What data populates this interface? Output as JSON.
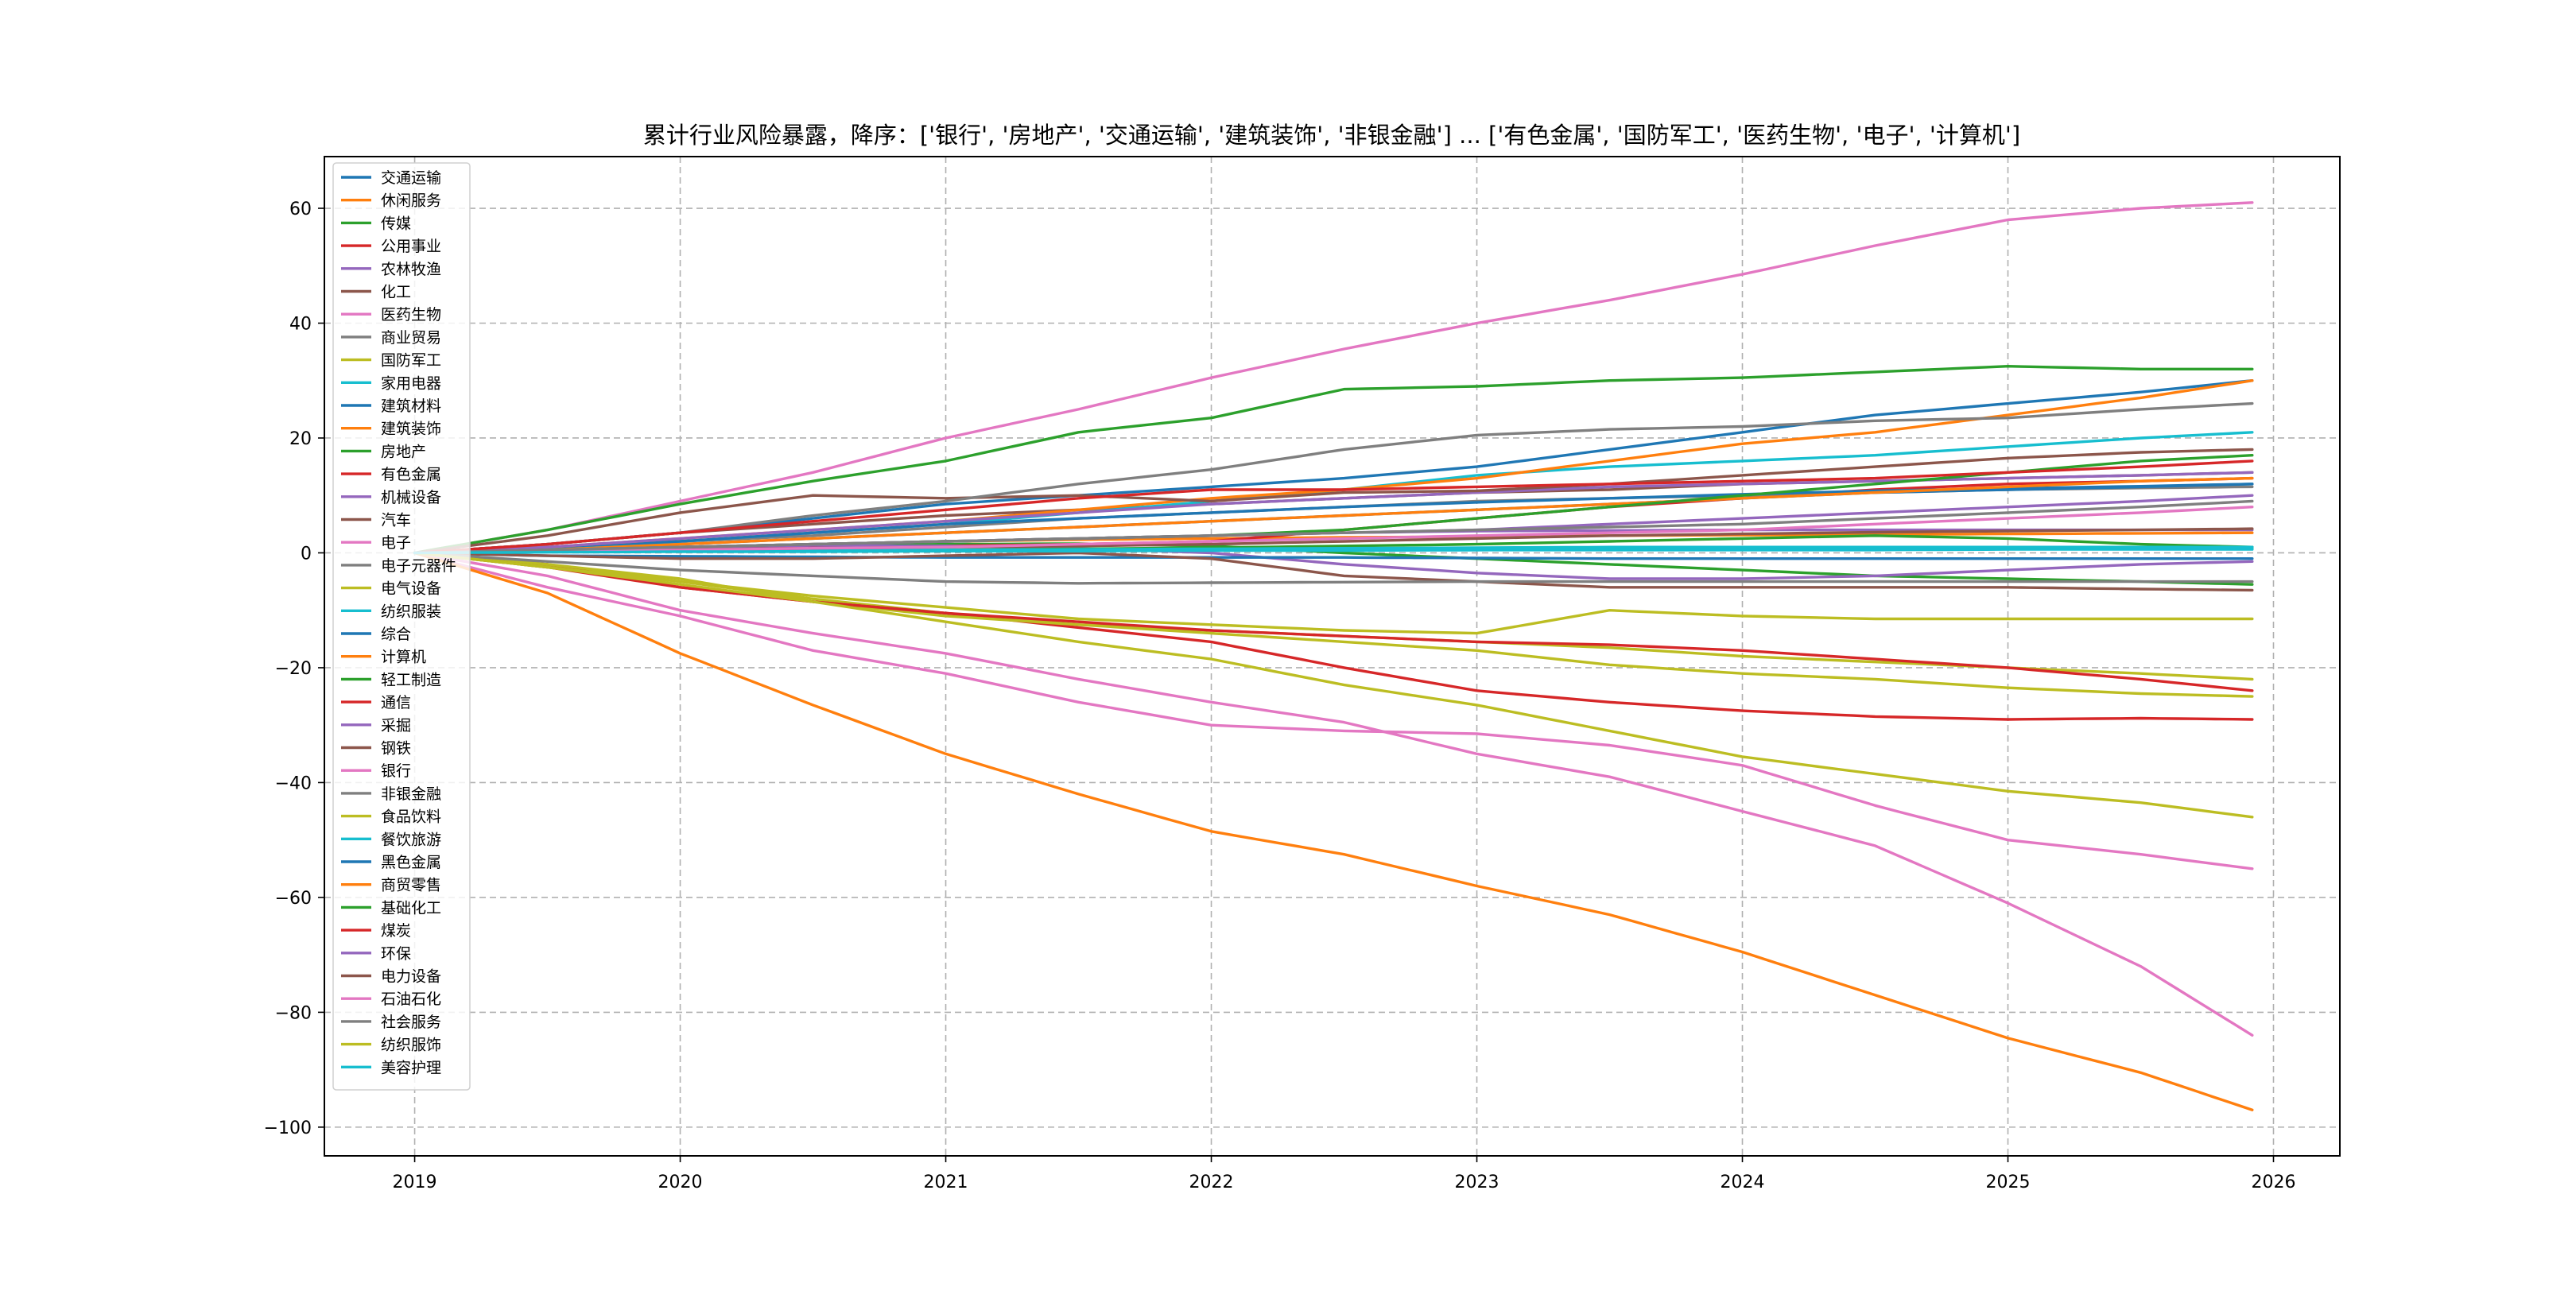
{
  "chart_data": {
    "type": "line",
    "title": "累计行业风险暴露，降序：['银行', '房地产', '交通运输', '建筑装饰', '非银金融'] ... ['有色金属', '国防军工', '医药生物', '电子', '计算机']",
    "xlabel": "",
    "ylabel": "",
    "xlim": [
      2018.66,
      2026.25
    ],
    "ylim": [
      -105,
      69
    ],
    "xticks": [
      2019,
      2020,
      2021,
      2022,
      2023,
      2024,
      2025,
      2026
    ],
    "xtick_labels": [
      "2019",
      "2020",
      "2021",
      "2022",
      "2023",
      "2024",
      "2025",
      "2026"
    ],
    "yticks": [
      -100,
      -80,
      -60,
      -40,
      -20,
      0,
      20,
      40,
      60
    ],
    "ytick_labels": [
      "−100",
      "−80",
      "−60",
      "−40",
      "−20",
      "0",
      "20",
      "40",
      "60"
    ],
    "grid": true,
    "legend_position": "upper-left",
    "x": [
      2019.0,
      2019.5,
      2020.0,
      2020.5,
      2021.0,
      2021.5,
      2022.0,
      2022.5,
      2023.0,
      2023.5,
      2024.0,
      2024.5,
      2025.0,
      2025.5,
      2025.92
    ],
    "series": [
      {
        "name": "交通运输",
        "color": "#1f77b4",
        "values": [
          0,
          1.5,
          3.5,
          6,
          8.5,
          10,
          11.5,
          13,
          15,
          18,
          21,
          24,
          26,
          28,
          30
        ]
      },
      {
        "name": "休闲服务",
        "color": "#ff7f0e",
        "values": [
          0,
          0.5,
          1,
          1.5,
          2,
          2.3,
          2.5,
          2.7,
          2.8,
          3,
          3.1,
          3.2,
          3.3,
          3.4,
          3.5
        ]
      },
      {
        "name": "传媒",
        "color": "#2ca02c",
        "values": [
          0,
          0.5,
          1,
          1.3,
          1.5,
          1.6,
          1.2,
          0,
          -1,
          -2,
          -3,
          -4,
          -4.5,
          -5,
          -5.5
        ]
      },
      {
        "name": "公用事业",
        "color": "#d62728",
        "values": [
          0,
          0.3,
          0.6,
          0.9,
          1.2,
          1.5,
          2,
          4,
          6,
          8,
          9.5,
          11,
          12,
          12.5,
          13
        ]
      },
      {
        "name": "农林牧渔",
        "color": "#9467bd",
        "values": [
          0,
          0.5,
          1,
          1.3,
          1.2,
          0.8,
          0,
          -2,
          -3.5,
          -4.5,
          -4.5,
          -4,
          -3,
          -2,
          -1.5
        ]
      },
      {
        "name": "化工",
        "color": "#8c564b",
        "values": [
          0,
          1.5,
          3.5,
          5,
          6.5,
          7.5,
          8.5,
          9.5,
          10.5,
          11,
          12,
          12.5,
          13,
          13.5,
          14
        ]
      },
      {
        "name": "医药生物",
        "color": "#e377c2",
        "values": [
          0,
          4,
          9,
          14,
          20,
          25,
          30.5,
          35.5,
          40,
          44,
          48.5,
          53.5,
          58,
          60,
          61
        ]
      },
      {
        "name": "商业贸易",
        "color": "#7f7f7f",
        "values": [
          0,
          1,
          2,
          3,
          4.5,
          6,
          7,
          8,
          9,
          9.5,
          10,
          10.5,
          11,
          11.3,
          11.5
        ]
      },
      {
        "name": "国防军工",
        "color": "#bcbd22",
        "values": [
          0,
          -2,
          -5,
          -8,
          -10.5,
          -12.5,
          -14,
          -15.5,
          -17,
          -19.5,
          -21,
          -22,
          -23.5,
          -24.5,
          -25
        ]
      },
      {
        "name": "家用电器",
        "color": "#17becf",
        "values": [
          0,
          0.8,
          2,
          3.5,
          5,
          7,
          9,
          11,
          13.5,
          15,
          16,
          17,
          18.5,
          20,
          21
        ]
      },
      {
        "name": "建筑材料",
        "color": "#1f77b4",
        "values": [
          0,
          1,
          2,
          3.5,
          5,
          6,
          7,
          8,
          8.8,
          9.5,
          10.2,
          10.8,
          11.2,
          11.6,
          12
        ]
      },
      {
        "name": "建筑装饰",
        "color": "#ff7f0e",
        "values": [
          0,
          1,
          2.5,
          4,
          5.5,
          7.5,
          9.5,
          11,
          13,
          16,
          19,
          21,
          24,
          27,
          30
        ]
      },
      {
        "name": "房地产",
        "color": "#2ca02c",
        "values": [
          0,
          4,
          8.5,
          12.5,
          16,
          21,
          23.5,
          28.5,
          29,
          30,
          30.5,
          31.5,
          32.5,
          32,
          32
        ]
      },
      {
        "name": "有色金属",
        "color": "#d62728",
        "values": [
          0,
          -2,
          -6,
          -8.5,
          -10.5,
          -13,
          -15.5,
          -20,
          -24,
          -26,
          -27.5,
          -28.5,
          -29,
          -28.8,
          -29
        ]
      },
      {
        "name": "机械设备",
        "color": "#9467bd",
        "values": [
          0,
          1,
          2.5,
          4,
          5.5,
          7,
          8.5,
          9.5,
          10.5,
          11.5,
          12,
          12.5,
          13,
          13.5,
          14
        ]
      },
      {
        "name": "汽车",
        "color": "#8c564b",
        "values": [
          0,
          3,
          7,
          10,
          9.5,
          10,
          9,
          10.5,
          10.8,
          12,
          13.5,
          15,
          16.5,
          17.5,
          18
        ]
      },
      {
        "name": "电子",
        "color": "#e377c2",
        "values": [
          0,
          -6,
          -11,
          -17,
          -21,
          -26,
          -30,
          -31,
          -31.5,
          -33.5,
          -37,
          -44,
          -50,
          -52.5,
          -55
        ]
      },
      {
        "name": "电子元器件",
        "color": "#7f7f7f",
        "values": [
          0,
          1.5,
          3.5,
          6.5,
          9,
          12,
          14.5,
          18,
          20.5,
          21.5,
          22,
          23,
          23.5,
          25,
          26
        ]
      },
      {
        "name": "电气设备",
        "color": "#bcbd22",
        "values": [
          0,
          -2,
          -4.5,
          -8.5,
          -11,
          -12.5,
          -13.5,
          -14.5,
          -15.5,
          -16.5,
          -18,
          -19,
          -20,
          -21,
          -22
        ]
      },
      {
        "name": "纺织服装",
        "color": "#17becf",
        "values": [
          0,
          0.2,
          0.3,
          0.4,
          0.5,
          0.5,
          0.5,
          0.5,
          0.5,
          0.6,
          0.6,
          0.6,
          0.7,
          0.7,
          0.8
        ]
      },
      {
        "name": "综合",
        "color": "#1f77b4",
        "values": [
          0,
          -0.5,
          -0.6,
          -0.7,
          -0.8,
          -0.8,
          -0.8,
          -0.8,
          -0.9,
          -1,
          -1,
          -1,
          -1,
          -1,
          -1
        ]
      },
      {
        "name": "计算机",
        "color": "#ff7f0e",
        "values": [
          0,
          -7,
          -17.5,
          -26.5,
          -35,
          -42,
          -48.5,
          -52.5,
          -58,
          -63,
          -69.5,
          -77,
          -84.5,
          -90.5,
          -97
        ]
      },
      {
        "name": "轻工制造",
        "color": "#2ca02c",
        "values": [
          0,
          0.2,
          0.3,
          0.4,
          0.5,
          0.7,
          0.9,
          1.2,
          1.5,
          2,
          2.5,
          3,
          2.5,
          1.5,
          1
        ]
      },
      {
        "name": "通信",
        "color": "#d62728",
        "values": [
          0,
          -2.5,
          -6,
          -8.5,
          -10.5,
          -12,
          -13.5,
          -14.5,
          -15.5,
          -16,
          -17,
          -18.5,
          -20,
          -22,
          -24
        ]
      },
      {
        "name": "采掘",
        "color": "#9467bd",
        "values": [
          0,
          0.5,
          1,
          1.5,
          2,
          2.5,
          3,
          3.5,
          3.8,
          3.9,
          4,
          4,
          4,
          4,
          4
        ]
      },
      {
        "name": "钢铁",
        "color": "#8c564b",
        "values": [
          0,
          -0.5,
          -1,
          -1,
          -0.5,
          0,
          -1,
          -4,
          -5,
          -6,
          -6,
          -6,
          -6,
          -6.3,
          -6.5
        ]
      },
      {
        "name": "银行",
        "color": "#e377c2",
        "values": [
          0,
          -4,
          -10,
          -14,
          -17.5,
          -22,
          -26,
          -29.5,
          -35,
          -39,
          -45,
          -51,
          -61,
          -72,
          -84
        ]
      },
      {
        "name": "非银金融",
        "color": "#7f7f7f",
        "values": [
          0,
          -1.5,
          -3,
          -4,
          -5,
          -5.3,
          -5.2,
          -5.1,
          -5,
          -5,
          -5,
          -5,
          -5,
          -5,
          -5
        ]
      },
      {
        "name": "食品饮料",
        "color": "#bcbd22",
        "values": [
          0,
          -2.5,
          -5.5,
          -8.5,
          -12,
          -15.5,
          -18.5,
          -23,
          -26.5,
          -31,
          -35.5,
          -38.5,
          -41.5,
          -43.5,
          -46
        ]
      },
      {
        "name": "餐饮旅游",
        "color": "#17becf",
        "values": [
          0,
          0.2,
          0.3,
          0.4,
          0.5,
          0.6,
          0.7,
          0.8,
          0.9,
          1,
          1,
          1,
          1,
          1,
          1
        ]
      },
      {
        "name": "黑色金属",
        "color": "#1f77b4",
        "values": [
          0,
          0.5,
          1.5,
          2.5,
          3.5,
          4.5,
          5.5,
          6.5,
          7.5,
          8.5,
          9.5,
          10.5,
          11,
          11.5,
          12
        ]
      },
      {
        "name": "商贸零售",
        "color": "#ff7f0e",
        "values": [
          0,
          0.5,
          1.5,
          2.5,
          3.5,
          4.5,
          5.5,
          6.5,
          7.5,
          8.5,
          9.5,
          10.5,
          11.5,
          12.5,
          13
        ]
      },
      {
        "name": "基础化工",
        "color": "#2ca02c",
        "values": [
          0,
          0.5,
          1,
          1.5,
          2,
          2.5,
          3,
          4,
          6,
          8,
          10,
          12,
          14,
          16,
          17
        ]
      },
      {
        "name": "煤炭",
        "color": "#d62728",
        "values": [
          0,
          1.5,
          3.5,
          5.5,
          7.5,
          9.5,
          11,
          11,
          11.5,
          12,
          12.5,
          13,
          14,
          15,
          16
        ]
      },
      {
        "name": "环保",
        "color": "#9467bd",
        "values": [
          0,
          0.5,
          1,
          1.5,
          2,
          2.5,
          3,
          3.5,
          4,
          5,
          6,
          7,
          8,
          9,
          10
        ]
      },
      {
        "name": "电力设备",
        "color": "#8c564b",
        "values": [
          0,
          0.3,
          0.5,
          0.8,
          1,
          1.2,
          1.5,
          2,
          2.5,
          3,
          3.3,
          3.6,
          3.8,
          4,
          4.2
        ]
      },
      {
        "name": "石油石化",
        "color": "#e377c2",
        "values": [
          0,
          0.3,
          0.5,
          0.8,
          1,
          1.5,
          2,
          2.5,
          3,
          3.5,
          4,
          5,
          6,
          7,
          8
        ]
      },
      {
        "name": "社会服务",
        "color": "#7f7f7f",
        "values": [
          0,
          0.5,
          1,
          1.5,
          2,
          2.5,
          3,
          3.5,
          4,
          4.5,
          5,
          6,
          7,
          8,
          9
        ]
      },
      {
        "name": "纺织服饰",
        "color": "#bcbd22",
        "values": [
          0,
          -2.5,
          -5,
          -7.5,
          -9.5,
          -11.5,
          -12.5,
          -13.5,
          -14,
          -10,
          -11,
          -11.5,
          -11.5,
          -11.5,
          -11.5
        ]
      },
      {
        "name": "美容护理",
        "color": "#17becf",
        "values": [
          0,
          0.1,
          0.2,
          0.2,
          0.3,
          0.3,
          0.4,
          0.4,
          0.5,
          0.5,
          0.5,
          0.5,
          0.6,
          0.6,
          0.6
        ]
      }
    ]
  }
}
